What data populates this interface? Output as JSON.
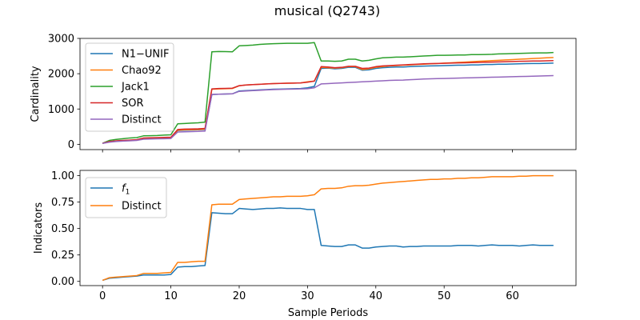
{
  "figure": {
    "title": "musical (Q2743)"
  },
  "chart_data": [
    {
      "type": "line",
      "title": "",
      "xlabel": "",
      "ylabel": "Cardinality",
      "xlim": [
        -3.3,
        69.3
      ],
      "ylim": [
        -150,
        3000
      ],
      "xticks": [
        0,
        10,
        20,
        30,
        40,
        50,
        60
      ],
      "yticks": [
        0,
        1000,
        2000,
        3000
      ],
      "show_xtick_labels": false,
      "legend_position": "top-left",
      "grid": false,
      "series": [
        {
          "name": "N1−UNIF",
          "color": "#1f77b4",
          "x": [
            0,
            1,
            2,
            3,
            4,
            5,
            6,
            7,
            8,
            9,
            10,
            11,
            12,
            13,
            14,
            15,
            16,
            17,
            18,
            19,
            20,
            21,
            22,
            23,
            24,
            25,
            26,
            27,
            28,
            29,
            30,
            31,
            32,
            33,
            34,
            35,
            36,
            37,
            38,
            39,
            40,
            41,
            42,
            43,
            44,
            45,
            46,
            47,
            48,
            49,
            50,
            51,
            52,
            53,
            54,
            55,
            56,
            57,
            58,
            59,
            60,
            61,
            62,
            63,
            64,
            65,
            66
          ],
          "values": [
            30,
            70,
            90,
            100,
            110,
            120,
            160,
            170,
            175,
            180,
            185,
            390,
            400,
            405,
            410,
            420,
            1410,
            1420,
            1425,
            1430,
            1510,
            1520,
            1530,
            1540,
            1550,
            1560,
            1565,
            1570,
            1575,
            1580,
            1600,
            1640,
            2150,
            2160,
            2140,
            2150,
            2180,
            2180,
            2100,
            2110,
            2150,
            2170,
            2180,
            2190,
            2190,
            2200,
            2210,
            2215,
            2220,
            2225,
            2230,
            2235,
            2240,
            2240,
            2250,
            2250,
            2260,
            2260,
            2270,
            2270,
            2275,
            2280,
            2285,
            2290,
            2290,
            2295,
            2300
          ]
        },
        {
          "name": "Chao92",
          "color": "#ff7f0e",
          "x": [
            0,
            1,
            2,
            3,
            4,
            5,
            6,
            7,
            8,
            9,
            10,
            11,
            12,
            13,
            14,
            15,
            16,
            17,
            18,
            19,
            20,
            21,
            22,
            23,
            24,
            25,
            26,
            27,
            28,
            29,
            30,
            31,
            32,
            33,
            34,
            35,
            36,
            37,
            38,
            39,
            40,
            41,
            42,
            43,
            44,
            45,
            46,
            47,
            48,
            49,
            50,
            51,
            52,
            53,
            54,
            55,
            56,
            57,
            58,
            59,
            60,
            61,
            62,
            63,
            64,
            65,
            66
          ],
          "values": [
            30,
            75,
            95,
            105,
            115,
            125,
            170,
            175,
            180,
            185,
            190,
            400,
            410,
            415,
            420,
            430,
            1560,
            1570,
            1575,
            1580,
            1660,
            1680,
            1690,
            1700,
            1710,
            1720,
            1725,
            1730,
            1735,
            1740,
            1770,
            1790,
            2180,
            2170,
            2160,
            2170,
            2200,
            2200,
            2120,
            2140,
            2180,
            2200,
            2220,
            2230,
            2240,
            2250,
            2260,
            2270,
            2280,
            2290,
            2300,
            2310,
            2320,
            2330,
            2340,
            2350,
            2360,
            2370,
            2380,
            2390,
            2400,
            2410,
            2420,
            2430,
            2440,
            2450,
            2460
          ]
        },
        {
          "name": "Jack1",
          "color": "#2ca02c",
          "x": [
            0,
            1,
            2,
            3,
            4,
            5,
            6,
            7,
            8,
            9,
            10,
            11,
            12,
            13,
            14,
            15,
            16,
            17,
            18,
            19,
            20,
            21,
            22,
            23,
            24,
            25,
            26,
            27,
            28,
            29,
            30,
            31,
            32,
            33,
            34,
            35,
            36,
            37,
            38,
            39,
            40,
            41,
            42,
            43,
            44,
            45,
            46,
            47,
            48,
            49,
            50,
            51,
            52,
            53,
            54,
            55,
            56,
            57,
            58,
            59,
            60,
            61,
            62,
            63,
            64,
            65,
            66
          ],
          "values": [
            30,
            110,
            140,
            160,
            180,
            190,
            240,
            245,
            250,
            260,
            270,
            580,
            590,
            600,
            610,
            630,
            2620,
            2630,
            2625,
            2620,
            2790,
            2800,
            2810,
            2830,
            2840,
            2850,
            2855,
            2860,
            2860,
            2860,
            2860,
            2880,
            2360,
            2360,
            2350,
            2360,
            2410,
            2410,
            2360,
            2380,
            2420,
            2450,
            2460,
            2470,
            2470,
            2480,
            2490,
            2500,
            2510,
            2520,
            2520,
            2525,
            2530,
            2530,
            2540,
            2540,
            2545,
            2550,
            2560,
            2565,
            2570,
            2575,
            2580,
            2585,
            2590,
            2590,
            2600
          ]
        },
        {
          "name": "SOR",
          "color": "#d62728",
          "x": [
            0,
            1,
            2,
            3,
            4,
            5,
            6,
            7,
            8,
            9,
            10,
            11,
            12,
            13,
            14,
            15,
            16,
            17,
            18,
            19,
            20,
            21,
            22,
            23,
            24,
            25,
            26,
            27,
            28,
            29,
            30,
            31,
            32,
            33,
            34,
            35,
            36,
            37,
            38,
            39,
            40,
            41,
            42,
            43,
            44,
            45,
            46,
            47,
            48,
            49,
            50,
            51,
            52,
            53,
            54,
            55,
            56,
            57,
            58,
            59,
            60,
            61,
            62,
            63,
            64,
            65,
            66
          ],
          "values": [
            30,
            80,
            100,
            110,
            120,
            130,
            180,
            185,
            190,
            195,
            200,
            420,
            430,
            435,
            440,
            450,
            1570,
            1580,
            1585,
            1590,
            1660,
            1680,
            1690,
            1700,
            1710,
            1720,
            1725,
            1730,
            1735,
            1740,
            1760,
            1790,
            2200,
            2190,
            2170,
            2180,
            2210,
            2210,
            2150,
            2160,
            2200,
            2220,
            2230,
            2240,
            2250,
            2260,
            2270,
            2280,
            2285,
            2290,
            2295,
            2300,
            2305,
            2310,
            2315,
            2320,
            2325,
            2330,
            2335,
            2340,
            2345,
            2350,
            2355,
            2360,
            2360,
            2365,
            2370
          ]
        },
        {
          "name": "Distinct",
          "color": "#9467bd",
          "x": [
            0,
            1,
            2,
            3,
            4,
            5,
            6,
            7,
            8,
            9,
            10,
            11,
            12,
            13,
            14,
            15,
            16,
            17,
            18,
            19,
            20,
            21,
            22,
            23,
            24,
            25,
            26,
            27,
            28,
            29,
            30,
            31,
            32,
            33,
            34,
            35,
            36,
            37,
            38,
            39,
            40,
            41,
            42,
            43,
            44,
            45,
            46,
            47,
            48,
            49,
            50,
            51,
            52,
            53,
            54,
            55,
            56,
            57,
            58,
            59,
            60,
            61,
            62,
            63,
            64,
            65,
            66
          ],
          "values": [
            25,
            60,
            80,
            90,
            100,
            110,
            145,
            150,
            155,
            160,
            165,
            350,
            355,
            360,
            365,
            375,
            1410,
            1420,
            1425,
            1430,
            1500,
            1510,
            1520,
            1530,
            1540,
            1550,
            1555,
            1560,
            1565,
            1570,
            1575,
            1600,
            1710,
            1720,
            1730,
            1740,
            1750,
            1760,
            1770,
            1780,
            1790,
            1800,
            1810,
            1815,
            1820,
            1830,
            1840,
            1850,
            1855,
            1860,
            1865,
            1870,
            1875,
            1880,
            1885,
            1890,
            1895,
            1900,
            1905,
            1910,
            1915,
            1920,
            1925,
            1930,
            1935,
            1940,
            1945
          ]
        }
      ]
    },
    {
      "type": "line",
      "title": "",
      "xlabel": "Sample Periods",
      "ylabel": "Indicators",
      "xlim": [
        -3.3,
        69.3
      ],
      "ylim": [
        -0.04,
        1.05
      ],
      "xticks": [
        0,
        10,
        20,
        30,
        40,
        50,
        60
      ],
      "yticks": [
        0.0,
        0.25,
        0.5,
        0.75,
        1.0
      ],
      "ytick_labels": [
        "0.00",
        "0.25",
        "0.50",
        "0.75",
        "1.00"
      ],
      "show_xtick_labels": true,
      "legend_position": "top-left",
      "grid": false,
      "series": [
        {
          "name": "f1",
          "legend_main": "f",
          "legend_sub": "1",
          "color": "#1f77b4",
          "x": [
            0,
            1,
            2,
            3,
            4,
            5,
            6,
            7,
            8,
            9,
            10,
            11,
            12,
            13,
            14,
            15,
            16,
            17,
            18,
            19,
            20,
            21,
            22,
            23,
            24,
            25,
            26,
            27,
            28,
            29,
            30,
            31,
            32,
            33,
            34,
            35,
            36,
            37,
            38,
            39,
            40,
            41,
            42,
            43,
            44,
            45,
            46,
            47,
            48,
            49,
            50,
            51,
            52,
            53,
            54,
            55,
            56,
            57,
            58,
            59,
            60,
            61,
            62,
            63,
            64,
            65,
            66
          ],
          "values": [
            0.01,
            0.03,
            0.035,
            0.04,
            0.045,
            0.05,
            0.06,
            0.06,
            0.06,
            0.06,
            0.065,
            0.135,
            0.14,
            0.14,
            0.145,
            0.15,
            0.65,
            0.645,
            0.64,
            0.64,
            0.69,
            0.685,
            0.68,
            0.685,
            0.69,
            0.69,
            0.695,
            0.69,
            0.69,
            0.69,
            0.68,
            0.68,
            0.34,
            0.335,
            0.33,
            0.33,
            0.345,
            0.345,
            0.315,
            0.315,
            0.325,
            0.33,
            0.335,
            0.335,
            0.325,
            0.33,
            0.33,
            0.335,
            0.335,
            0.335,
            0.335,
            0.335,
            0.34,
            0.34,
            0.34,
            0.335,
            0.34,
            0.345,
            0.34,
            0.34,
            0.34,
            0.335,
            0.34,
            0.345,
            0.34,
            0.34,
            0.34
          ]
        },
        {
          "name": "Distinct",
          "color": "#ff7f0e",
          "x": [
            0,
            1,
            2,
            3,
            4,
            5,
            6,
            7,
            8,
            9,
            10,
            11,
            12,
            13,
            14,
            15,
            16,
            17,
            18,
            19,
            20,
            21,
            22,
            23,
            24,
            25,
            26,
            27,
            28,
            29,
            30,
            31,
            32,
            33,
            34,
            35,
            36,
            37,
            38,
            39,
            40,
            41,
            42,
            43,
            44,
            45,
            46,
            47,
            48,
            49,
            50,
            51,
            52,
            53,
            54,
            55,
            56,
            57,
            58,
            59,
            60,
            61,
            62,
            63,
            64,
            65,
            66
          ],
          "values": [
            0.01,
            0.035,
            0.04,
            0.045,
            0.05,
            0.055,
            0.075,
            0.075,
            0.075,
            0.08,
            0.085,
            0.18,
            0.18,
            0.185,
            0.19,
            0.19,
            0.725,
            0.73,
            0.73,
            0.73,
            0.775,
            0.78,
            0.785,
            0.79,
            0.795,
            0.8,
            0.8,
            0.805,
            0.805,
            0.805,
            0.81,
            0.82,
            0.875,
            0.88,
            0.88,
            0.885,
            0.9,
            0.905,
            0.905,
            0.91,
            0.92,
            0.93,
            0.935,
            0.94,
            0.945,
            0.95,
            0.955,
            0.96,
            0.965,
            0.965,
            0.97,
            0.97,
            0.975,
            0.975,
            0.98,
            0.98,
            0.985,
            0.99,
            0.99,
            0.99,
            0.99,
            0.995,
            0.995,
            1.0,
            1.0,
            1.0,
            1.0
          ]
        }
      ]
    }
  ]
}
